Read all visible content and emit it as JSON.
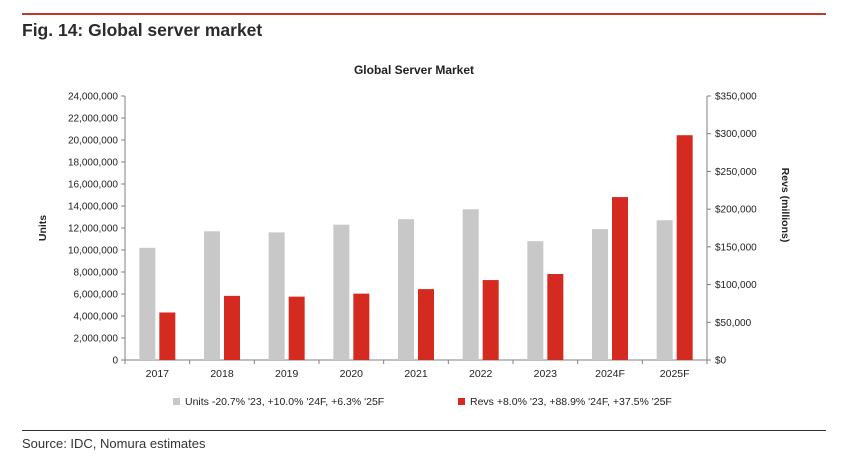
{
  "figure": {
    "title": "Fig. 14: Global server market",
    "source": "Source: IDC, Nomura estimates"
  },
  "colors": {
    "rule": "#c0392b",
    "units": "#c8c8c8",
    "revs": "#d42a20",
    "axis": "#808080",
    "text": "#222222"
  },
  "chart_data": {
    "type": "bar",
    "title": "Global Server Market",
    "categories": [
      "2017",
      "2018",
      "2019",
      "2020",
      "2021",
      "2022",
      "2023",
      "2024F",
      "2025F"
    ],
    "series": [
      {
        "name": "Units -20.7% '23, +10.0% '24F, +6.3% '25F",
        "axis": "left",
        "values": [
          10200000,
          11700000,
          11600000,
          12300000,
          12800000,
          13700000,
          10800000,
          11900000,
          12700000
        ]
      },
      {
        "name": "Revs +8.0% '23, +88.9% '24F, +37.5% '25F",
        "axis": "right",
        "values": [
          63000,
          85000,
          84000,
          88000,
          94000,
          106000,
          114000,
          216000,
          298000
        ]
      }
    ],
    "ylabel": "Units",
    "y2label": "Revs (millions)",
    "ylim": [
      0,
      24000000
    ],
    "y2lim": [
      0,
      350000
    ],
    "yticks": [
      "0",
      "2,000,000",
      "4,000,000",
      "6,000,000",
      "8,000,000",
      "10,000,000",
      "12,000,000",
      "14,000,000",
      "16,000,000",
      "18,000,000",
      "20,000,000",
      "22,000,000",
      "24,000,000"
    ],
    "y2ticks": [
      "$0",
      "$50,000",
      "$100,000",
      "$150,000",
      "$200,000",
      "$250,000",
      "$300,000",
      "$350,000"
    ],
    "grid": false,
    "legend": "bottom"
  }
}
